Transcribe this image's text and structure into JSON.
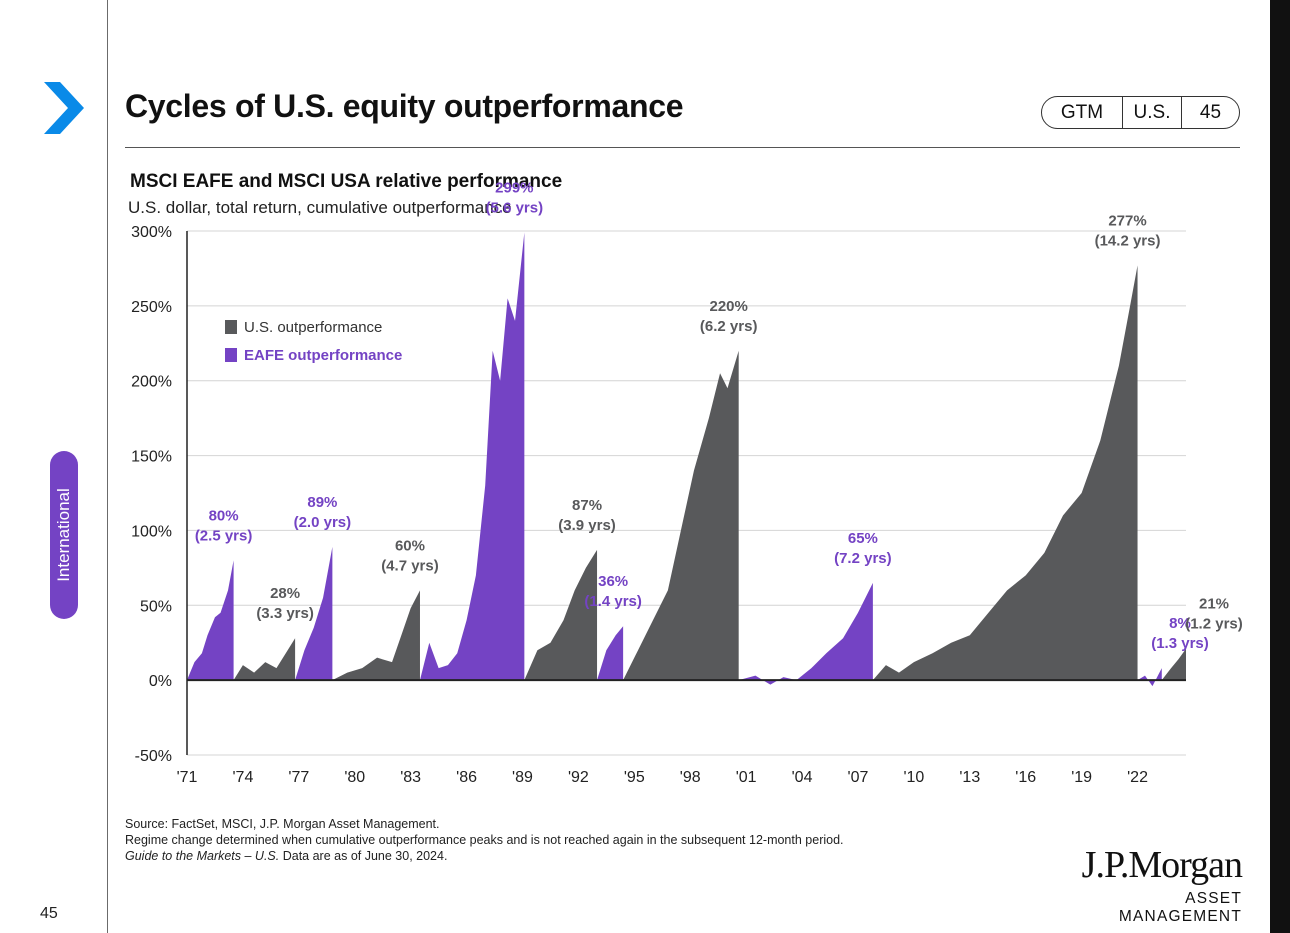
{
  "page_title": "Cycles of U.S. equity outperformance",
  "badge": {
    "guide": "GTM",
    "region": "U.S.",
    "page": "45"
  },
  "side_tab": "International",
  "page_number": "45",
  "colors": {
    "us": "#58595b",
    "eafe": "#7443c4",
    "accent": "#0a8ae8"
  },
  "chart_data": {
    "type": "area",
    "title": "MSCI EAFE and MSCI USA relative performance",
    "subtitle": "U.S. dollar, total return, cumulative outperformance",
    "ylim": [
      -50,
      300
    ],
    "yticks": [
      -50,
      0,
      50,
      100,
      150,
      200,
      250,
      300
    ],
    "y_tick_labels": [
      "-50%",
      "0%",
      "50%",
      "100%",
      "150%",
      "200%",
      "250%",
      "300%"
    ],
    "xlim": [
      1971,
      2024.6
    ],
    "x_ticks": [
      1971,
      1974,
      1977,
      1980,
      1983,
      1986,
      1989,
      1992,
      1995,
      1998,
      2001,
      2004,
      2007,
      2010,
      2013,
      2016,
      2019,
      2022
    ],
    "x_tick_labels": [
      "'71",
      "'74",
      "'77",
      "'80",
      "'83",
      "'86",
      "'89",
      "'92",
      "'95",
      "'98",
      "'01",
      "'04",
      "'07",
      "'10",
      "'13",
      "'16",
      "'19",
      "'22"
    ],
    "grid": true,
    "legend": {
      "position": "top-left",
      "items": [
        {
          "name": "U.S. outperformance",
          "series": "us"
        },
        {
          "name": "EAFE outperformance",
          "series": "eafe"
        }
      ]
    },
    "series": [
      {
        "name": "EAFE outperformance",
        "key": "eafe",
        "x": [
          1971.0,
          1971.4,
          1971.8,
          1972.1,
          1972.5,
          1972.8,
          1973.2,
          1973.5
        ],
        "y": [
          0,
          12,
          18,
          30,
          42,
          45,
          60,
          80
        ],
        "label": "80%",
        "duration": "(2.5 yrs)"
      },
      {
        "name": "U.S. outperformance",
        "key": "us",
        "x": [
          1973.5,
          1974.0,
          1974.6,
          1975.2,
          1975.8,
          1976.3,
          1976.8
        ],
        "y": [
          0,
          10,
          5,
          12,
          8,
          18,
          28
        ],
        "label": "28%",
        "duration": "(3.3 yrs)"
      },
      {
        "name": "EAFE outperformance",
        "key": "eafe",
        "x": [
          1976.8,
          1977.3,
          1977.8,
          1978.3,
          1978.8
        ],
        "y": [
          0,
          20,
          35,
          55,
          89
        ],
        "label": "89%",
        "duration": "(2.0 yrs)"
      },
      {
        "name": "U.S. outperformance",
        "key": "us",
        "x": [
          1978.8,
          1979.6,
          1980.4,
          1981.2,
          1982.0,
          1982.5,
          1983.0,
          1983.5
        ],
        "y": [
          0,
          5,
          8,
          15,
          12,
          30,
          48,
          60
        ],
        "label": "60%",
        "duration": "(4.7 yrs)"
      },
      {
        "name": "EAFE outperformance",
        "key": "eafe",
        "x": [
          1983.5,
          1984.0,
          1984.5,
          1985.0,
          1985.5,
          1986.0,
          1986.5,
          1987.0,
          1987.4,
          1987.8,
          1988.2,
          1988.6,
          1989.1
        ],
        "y": [
          0,
          25,
          8,
          10,
          18,
          40,
          70,
          130,
          220,
          200,
          255,
          240,
          299
        ],
        "label": "299%",
        "duration": "(5.6 yrs)"
      },
      {
        "name": "U.S. outperformance",
        "key": "us",
        "x": [
          1989.1,
          1989.8,
          1990.5,
          1991.2,
          1991.8,
          1992.4,
          1993.0
        ],
        "y": [
          0,
          20,
          25,
          40,
          60,
          75,
          87
        ],
        "label": "87%",
        "duration": "(3.9 yrs)"
      },
      {
        "name": "EAFE outperformance",
        "key": "eafe",
        "x": [
          1993.0,
          1993.5,
          1994.0,
          1994.4
        ],
        "y": [
          0,
          20,
          30,
          36
        ],
        "label": "36%",
        "duration": "(1.4 yrs)"
      },
      {
        "name": "U.S. outperformance",
        "key": "us",
        "x": [
          1994.4,
          1995.2,
          1996.0,
          1996.8,
          1997.5,
          1998.2,
          1999.0,
          1999.6,
          2000.0,
          2000.6
        ],
        "y": [
          0,
          20,
          40,
          60,
          100,
          140,
          175,
          205,
          195,
          220
        ],
        "label": "220%",
        "duration": "(6.2 yrs)"
      },
      {
        "name": "EAFE outperformance",
        "key": "eafe",
        "x": [
          2000.6,
          2001.5,
          2002.3,
          2003.0,
          2003.7,
          2004.5,
          2005.3,
          2006.2,
          2007.0,
          2007.8
        ],
        "y": [
          0,
          3,
          -3,
          2,
          0,
          8,
          18,
          28,
          45,
          65
        ],
        "label": "65%",
        "duration": "(7.2 yrs)"
      },
      {
        "name": "U.S. outperformance",
        "key": "us",
        "x": [
          2007.8,
          2008.5,
          2009.2,
          2010.0,
          2011.0,
          2012.0,
          2013.0,
          2014.0,
          2015.0,
          2016.0,
          2017.0,
          2018.0,
          2019.0,
          2020.0,
          2021.0,
          2021.6,
          2022.0
        ],
        "y": [
          0,
          10,
          5,
          12,
          18,
          25,
          30,
          45,
          60,
          70,
          85,
          110,
          125,
          160,
          210,
          250,
          277
        ],
        "label": "277%",
        "duration": "(14.2 yrs)"
      },
      {
        "name": "EAFE outperformance",
        "key": "eafe",
        "x": [
          2022.0,
          2022.4,
          2022.8,
          2023.3
        ],
        "y": [
          0,
          3,
          -4,
          8
        ],
        "label": "8%",
        "duration": "(1.3 yrs)"
      },
      {
        "name": "U.S. outperformance",
        "key": "us",
        "x": [
          2023.3,
          2023.8,
          2024.2,
          2024.6
        ],
        "y": [
          0,
          8,
          14,
          21
        ],
        "label": "21%",
        "duration": "(1.2 yrs)"
      }
    ]
  },
  "footer": {
    "source": "Source: FactSet, MSCI, J.P. Morgan Asset Management.",
    "note": "Regime change determined when cumulative outperformance peaks and is not reached again in the subsequent 12-month period.",
    "guide": "Guide to the Markets – U.S.",
    "asof": " Data are as of June 30, 2024."
  },
  "logo": {
    "name": "J.P.Morgan",
    "division": "ASSET MANAGEMENT"
  }
}
